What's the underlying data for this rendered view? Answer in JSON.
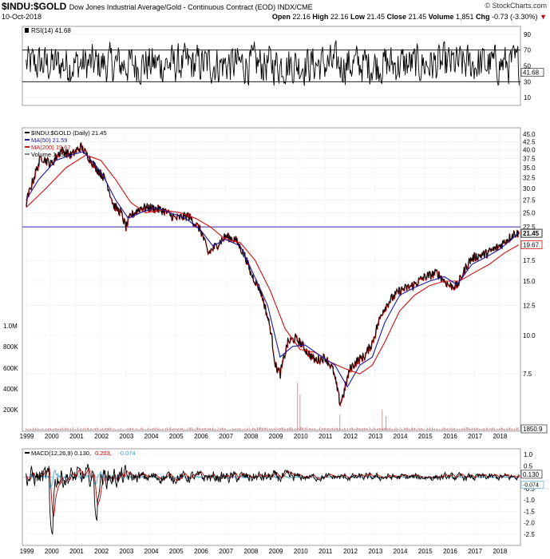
{
  "header": {
    "symbol": "$INDU:$GOLD",
    "description": "Dow Jones Industrial Average/Gold - Continuous Contract (EOD) INDX/CME",
    "date": "10-Oct-2018",
    "brand": "© StockCharts.com",
    "open_label": "Open",
    "open": "22.16",
    "high_label": "High",
    "high": "22.16",
    "low_label": "Low",
    "low": "21.45",
    "close_label": "Close",
    "close": "21.45",
    "volume_label": "Volume",
    "volume": "1,851",
    "chg_label": "Chg",
    "chg": "-0.73 (-3.30%)",
    "chg_arrow": "▼"
  },
  "colors": {
    "price": "#000000",
    "price_down": "#cc0000",
    "ma50": "#1a1aa6",
    "ma200": "#d01010",
    "volume": "#c08080",
    "hline": "#2a2ab0",
    "macd": "#000000",
    "signal": "#cc0000",
    "histogram": "#3aa0d0"
  },
  "chart_data": [
    {
      "type": "line",
      "panel": "RSI",
      "legend": "RSI(14) 41.68",
      "last_value": "41.68",
      "ylim": [
        0,
        100
      ],
      "y_ticks": [
        "90",
        "70",
        "50",
        "30",
        "10"
      ],
      "reference_lines": [
        70,
        30
      ],
      "summary": {
        "typical_range": [
          30,
          75
        ],
        "min": 15,
        "max": 85
      }
    },
    {
      "type": "line",
      "panel": "Price",
      "scale": "log",
      "ylim": [
        5.5,
        45
      ],
      "y_ticks": [
        "45.0",
        "42.5",
        "40.0",
        "37.5",
        "35.0",
        "32.5",
        "30.0",
        "27.5",
        "25.0",
        "22.5",
        "17.5",
        "15.0",
        "12.5",
        "10.0",
        "7.5"
      ],
      "volume_ticks": [
        "1.0M",
        "800K",
        "600K",
        "400K",
        "200K"
      ],
      "horizontal_line": 22.5,
      "value_tags": [
        {
          "label": "21.45",
          "value": 21.45,
          "style": "bold"
        },
        {
          "label": "19.67",
          "value": 19.67,
          "style": "red"
        },
        {
          "label": "1850.9",
          "value": 0,
          "style": "volume"
        }
      ],
      "legend": [
        {
          "text": "$INDU:$GOLD (Daily) 21.45"
        },
        {
          "text": "MA(50) 21.59"
        },
        {
          "text": "MA(200) 19.67"
        },
        {
          "text": "Volume 1,851"
        }
      ],
      "x_labels": [
        "1999",
        "2000",
        "2001",
        "2002",
        "2003",
        "2004",
        "2005",
        "2006",
        "2007",
        "2008",
        "2009",
        "2010",
        "2011",
        "2012",
        "2013",
        "2014",
        "2015",
        "2016",
        "2017",
        "2018"
      ],
      "series": [
        {
          "name": "$INDU:$GOLD",
          "x": [
            1999.0,
            1999.3,
            1999.6,
            2000.0,
            2000.4,
            2000.8,
            2001.2,
            2001.5,
            2001.8,
            2002.2,
            2002.5,
            2002.8,
            2003.0,
            2003.2,
            2003.6,
            2004.0,
            2004.5,
            2005.0,
            2005.5,
            2006.0,
            2006.3,
            2006.6,
            2007.0,
            2007.4,
            2007.8,
            2008.0,
            2008.4,
            2008.8,
            2009.0,
            2009.2,
            2009.5,
            2009.8,
            2010.0,
            2010.3,
            2010.6,
            2011.0,
            2011.3,
            2011.6,
            2011.75,
            2012.0,
            2012.3,
            2012.6,
            2012.9,
            2013.3,
            2013.6,
            2014.0,
            2014.5,
            2015.0,
            2015.5,
            2015.8,
            2016.0,
            2016.3,
            2016.8,
            2017.0,
            2017.5,
            2018.0,
            2018.3,
            2018.6,
            2018.78
          ],
          "values": [
            27.0,
            32.5,
            38.0,
            36.0,
            40.0,
            38.5,
            41.0,
            38.0,
            35.0,
            32.0,
            26.5,
            25.0,
            22.5,
            24.5,
            26.0,
            26.0,
            25.5,
            24.0,
            24.5,
            22.0,
            18.5,
            19.5,
            21.0,
            20.5,
            18.0,
            16.0,
            14.0,
            10.5,
            8.0,
            7.5,
            9.5,
            9.8,
            9.5,
            8.8,
            8.3,
            8.5,
            7.8,
            6.0,
            6.5,
            7.8,
            8.3,
            8.6,
            9.5,
            12.0,
            13.0,
            14.0,
            14.5,
            15.5,
            16.0,
            15.0,
            14.5,
            14.5,
            17.5,
            18.0,
            18.5,
            19.5,
            20.5,
            21.5,
            21.45
          ]
        },
        {
          "name": "MA(50)",
          "x": [
            1999.0,
            1999.5,
            2000.2,
            2000.8,
            2001.3,
            2002.0,
            2002.6,
            2003.1,
            2003.6,
            2004.2,
            2004.8,
            2005.4,
            2006.0,
            2006.5,
            2007.0,
            2007.6,
            2008.1,
            2008.7,
            2009.2,
            2009.7,
            2010.2,
            2010.8,
            2011.4,
            2011.9,
            2012.4,
            2012.9,
            2013.4,
            2014.0,
            2014.6,
            2015.2,
            2015.8,
            2016.3,
            2016.9,
            2017.5,
            2018.0,
            2018.5,
            2018.78
          ],
          "values": [
            27.5,
            32.0,
            37.0,
            38.5,
            39.5,
            34.0,
            27.5,
            24.0,
            25.0,
            26.0,
            25.0,
            24.0,
            22.0,
            19.5,
            20.5,
            19.5,
            16.0,
            12.5,
            8.5,
            9.2,
            9.3,
            8.6,
            8.0,
            6.8,
            8.0,
            8.5,
            11.0,
            13.5,
            14.3,
            15.0,
            15.5,
            14.6,
            17.0,
            18.0,
            19.0,
            20.5,
            21.59
          ]
        },
        {
          "name": "MA(200)",
          "x": [
            1999.0,
            1999.8,
            2000.6,
            2001.4,
            2002.0,
            2002.6,
            2003.2,
            2003.8,
            2004.5,
            2005.2,
            2005.8,
            2006.4,
            2007.0,
            2007.6,
            2008.2,
            2008.8,
            2009.4,
            2010.0,
            2010.6,
            2011.2,
            2011.8,
            2012.4,
            2012.9,
            2013.4,
            2014.0,
            2014.6,
            2015.2,
            2015.8,
            2016.4,
            2017.0,
            2017.6,
            2018.2,
            2018.78
          ],
          "values": [
            26.0,
            30.0,
            35.0,
            38.5,
            37.0,
            32.0,
            27.0,
            25.0,
            25.5,
            25.0,
            24.0,
            22.5,
            20.5,
            20.0,
            17.5,
            14.0,
            10.5,
            9.0,
            8.8,
            8.2,
            7.8,
            7.5,
            8.0,
            9.5,
            12.0,
            13.5,
            14.5,
            15.0,
            15.0,
            16.0,
            17.0,
            18.5,
            19.67
          ]
        }
      ]
    },
    {
      "type": "line",
      "panel": "MACD",
      "legend": [
        {
          "text": "MACD(12,26,9) 0.130,"
        },
        {
          "text": " 0.203,"
        },
        {
          "text": " -0.074"
        }
      ],
      "ylim": [
        -3.0,
        1.25
      ],
      "y_ticks": [
        "1.0",
        "0.5",
        "-0.5",
        "-1.0",
        "-1.5",
        "-2.0",
        "-2.5"
      ],
      "value_tags": [
        {
          "label": "0.130",
          "value": 0.13
        },
        {
          "label": "-0.074",
          "value": -0.074
        }
      ],
      "x_labels": [
        "1999",
        "2000",
        "2001",
        "2002",
        "2003",
        "2004",
        "2005",
        "2006",
        "2007",
        "2008",
        "2009",
        "2010",
        "2011",
        "2012",
        "2013",
        "2014",
        "2015",
        "2016",
        "2017",
        "2018"
      ],
      "summary": {
        "min": -2.6,
        "max": 0.8,
        "min_near": 2000.0
      }
    }
  ]
}
